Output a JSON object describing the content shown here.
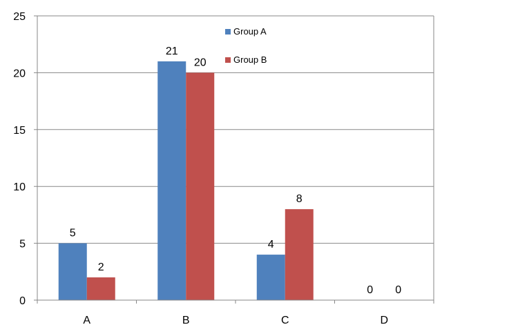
{
  "chart_data": {
    "type": "bar",
    "categories": [
      "A",
      "B",
      "C",
      "D"
    ],
    "series": [
      {
        "name": "Group A",
        "values": [
          5,
          21,
          4,
          0
        ],
        "color": "#4F81BD"
      },
      {
        "name": "Group B",
        "values": [
          2,
          20,
          8,
          0
        ],
        "color": "#C0504D"
      }
    ],
    "ylim": [
      0,
      25
    ],
    "yticks": [
      0,
      5,
      10,
      15,
      20,
      25
    ],
    "ytick_labels": [
      "0",
      "5",
      "10",
      "15",
      "20",
      "25"
    ],
    "grid": true,
    "legend_position": "top-center",
    "data_labels": true
  }
}
